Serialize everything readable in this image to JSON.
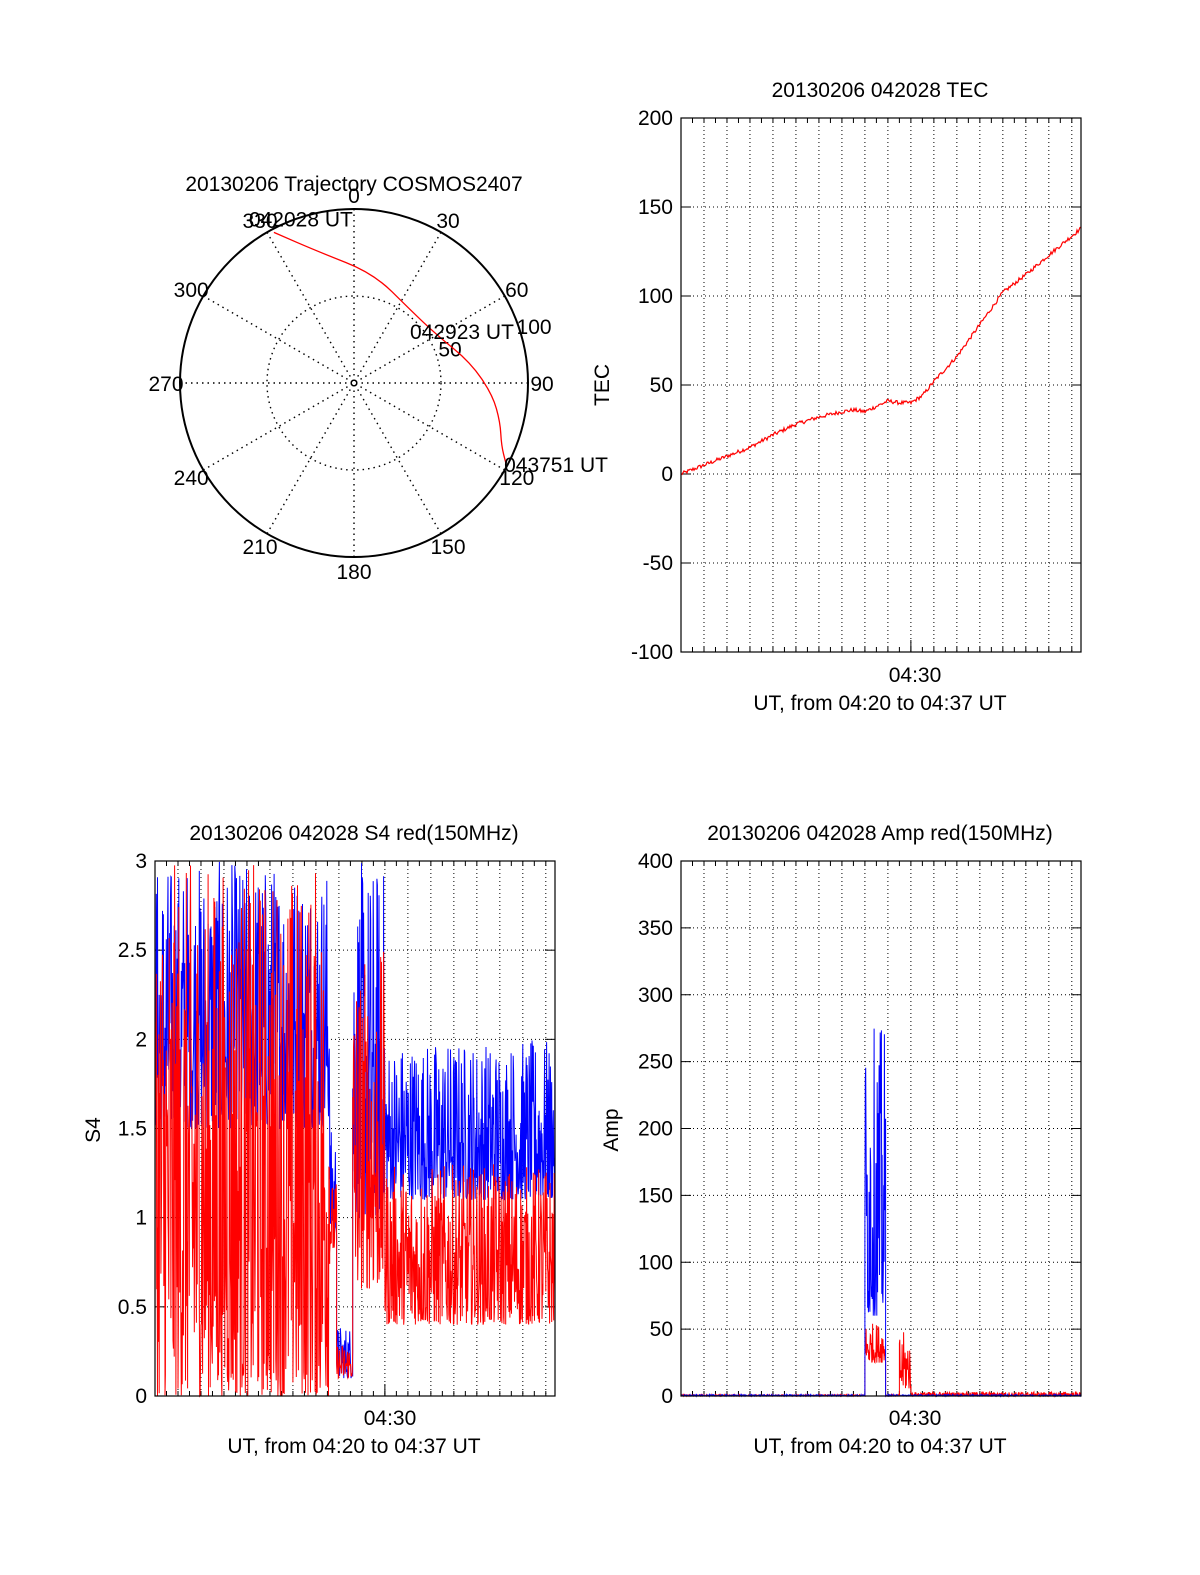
{
  "colors": {
    "red": "#ff0000",
    "blue": "#0000ff",
    "axis": "#000000",
    "grid": "#000000"
  },
  "chart_data": [
    {
      "id": "trajectory",
      "type": "polar",
      "title": "20130206 Trajectory COSMOS2407",
      "azimuth_labels": [
        "0",
        "30",
        "60",
        "90",
        "120",
        "150",
        "180",
        "210",
        "240",
        "270",
        "300",
        "330"
      ],
      "radius_labels": [
        "50",
        "100"
      ],
      "rlim": [
        0,
        100
      ],
      "track": {
        "start_label": "042028 UT",
        "mid_label": "042923 UT",
        "end_label": "043751 UT",
        "points": [
          {
            "az": 332,
            "r": 98
          },
          {
            "az": 345,
            "r": 78
          },
          {
            "az": 10,
            "r": 64
          },
          {
            "az": 38,
            "r": 53
          },
          {
            "az": 60,
            "r": 55
          },
          {
            "az": 80,
            "r": 68
          },
          {
            "az": 95,
            "r": 80
          },
          {
            "az": 105,
            "r": 87
          },
          {
            "az": 113,
            "r": 92
          },
          {
            "az": 118,
            "r": 99
          }
        ]
      }
    },
    {
      "id": "tec",
      "type": "line",
      "title": "20130206 042028 TEC",
      "ylabel": "TEC",
      "xlabel": "UT, from 04:20 to 04:37 UT",
      "x_tick_label": "04:30",
      "yticks": [
        "200",
        "150",
        "100",
        "50",
        "0",
        "-50",
        "-100"
      ],
      "ylim": [
        -100,
        200
      ],
      "xlim_minutes": [
        0,
        17.4
      ],
      "grid": true,
      "series": [
        {
          "color": "red",
          "x": [
            0,
            1,
            2,
            3,
            4,
            5,
            6,
            7,
            7.5,
            8,
            9,
            9.5,
            10,
            10.5,
            11,
            12,
            13,
            14,
            15,
            16,
            17.4
          ],
          "y": [
            0,
            5,
            10,
            15,
            22,
            28,
            32,
            35,
            36,
            35,
            41,
            40,
            40,
            44,
            52,
            66,
            84,
            102,
            112,
            123,
            138
          ]
        }
      ]
    },
    {
      "id": "s4",
      "type": "line",
      "title": "20130206 042028 S4 red(150MHz)",
      "ylabel": "S4",
      "xlabel": "UT, from 04:20 to 04:37 UT",
      "x_tick_label": "04:30",
      "yticks": [
        "3",
        "2.5",
        "2",
        "1.5",
        "1",
        "0.5",
        "0"
      ],
      "ylim": [
        0,
        3
      ],
      "xlim_minutes": [
        0,
        17.4
      ],
      "grid": true,
      "series": [
        {
          "color": "blue",
          "segments": [
            {
              "from": 0,
              "to": 7.6,
              "low": 1.5,
              "high": 3.0
            },
            {
              "from": 7.6,
              "to": 7.9,
              "low": 0.9,
              "high": 1.5
            },
            {
              "from": 7.9,
              "to": 8.6,
              "low": 0.1,
              "high": 0.4
            },
            {
              "from": 8.6,
              "to": 10.0,
              "low": 1.0,
              "high": 3.0
            },
            {
              "from": 10.0,
              "to": 17.4,
              "low": 1.1,
              "high": 2.0
            }
          ]
        },
        {
          "color": "red",
          "segments": [
            {
              "from": 0,
              "to": 7.6,
              "low": 0.0,
              "high": 3.0
            },
            {
              "from": 7.6,
              "to": 7.9,
              "low": 0.8,
              "high": 1.2
            },
            {
              "from": 7.9,
              "to": 8.6,
              "low": 0.1,
              "high": 0.3
            },
            {
              "from": 8.6,
              "to": 10.0,
              "low": 0.6,
              "high": 2.5
            },
            {
              "from": 10.0,
              "to": 17.4,
              "low": 0.4,
              "high": 1.3
            }
          ]
        }
      ]
    },
    {
      "id": "amp",
      "type": "line",
      "title": "20130206 042028 Amp red(150MHz)",
      "ylabel": "Amp",
      "xlabel": "UT, from 04:20 to 04:37 UT",
      "x_tick_label": "04:30",
      "yticks": [
        "400",
        "350",
        "300",
        "250",
        "200",
        "150",
        "100",
        "50",
        "0"
      ],
      "ylim": [
        0,
        400
      ],
      "xlim_minutes": [
        0,
        17.4
      ],
      "grid": true,
      "series": [
        {
          "color": "red",
          "segments": [
            {
              "from": 0,
              "to": 8.0,
              "low": 0,
              "high": 1
            },
            {
              "from": 8.0,
              "to": 8.9,
              "low": 25,
              "high": 55
            },
            {
              "from": 8.9,
              "to": 9.5,
              "low": 0,
              "high": 1
            },
            {
              "from": 9.5,
              "to": 10.0,
              "low": 5,
              "high": 48
            },
            {
              "from": 10.0,
              "to": 17.4,
              "low": 0,
              "high": 3
            }
          ]
        },
        {
          "color": "blue",
          "segments": [
            {
              "from": 0,
              "to": 8.0,
              "low": 0,
              "high": 1
            },
            {
              "from": 8.0,
              "to": 8.9,
              "low": 60,
              "high": 276
            },
            {
              "from": 8.9,
              "to": 17.4,
              "low": 0,
              "high": 1
            }
          ]
        }
      ]
    }
  ]
}
